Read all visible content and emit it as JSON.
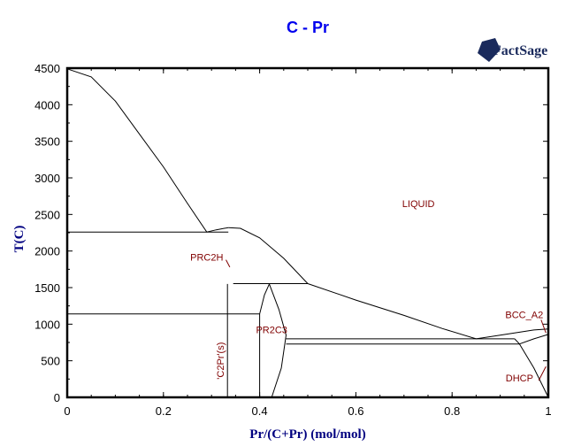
{
  "chart_data": {
    "type": "line",
    "title": "C - Pr",
    "xlabel": "Pr/(C+Pr) (mol/mol)",
    "ylabel": "T(C)",
    "xlim": [
      0,
      1
    ],
    "ylim": [
      0,
      4500
    ],
    "xticks": [
      "0",
      "0.2",
      "0.4",
      "0.6",
      "0.8",
      "1"
    ],
    "yticks": [
      "0",
      "500",
      "1000",
      "1500",
      "2000",
      "2500",
      "3000",
      "3500",
      "4000",
      "4500"
    ],
    "grid": false,
    "phase_labels": [
      {
        "text": "LIQUID",
        "x": 0.73,
        "y": 2600
      },
      {
        "text": "PRC2H",
        "x": 0.29,
        "y": 1870
      },
      {
        "text": "PR2C3",
        "x": 0.425,
        "y": 880
      },
      {
        "text": "'C2Pr'(s)",
        "x": 0.325,
        "y": 500,
        "rotated": true
      },
      {
        "text": "BCC_A2",
        "x": 0.95,
        "y": 1080
      },
      {
        "text": "DHCP",
        "x": 0.94,
        "y": 220
      }
    ],
    "lines": [
      {
        "name": "liquidus-C-rich",
        "points": [
          [
            0,
            4490
          ],
          [
            0.05,
            4380
          ],
          [
            0.1,
            4050
          ],
          [
            0.15,
            3600
          ],
          [
            0.2,
            3150
          ],
          [
            0.25,
            2650
          ],
          [
            0.29,
            2260
          ],
          [
            0.31,
            2290
          ],
          [
            0.335,
            2320
          ]
        ]
      },
      {
        "name": "liquidus-PrC2-dome",
        "points": [
          [
            0.335,
            2320
          ],
          [
            0.36,
            2310
          ],
          [
            0.4,
            2180
          ],
          [
            0.45,
            1900
          ],
          [
            0.5,
            1555
          ]
        ]
      },
      {
        "name": "liquidus-Pr-rich",
        "points": [
          [
            0.5,
            1555
          ],
          [
            0.6,
            1330
          ],
          [
            0.7,
            1120
          ],
          [
            0.78,
            940
          ],
          [
            0.85,
            800
          ],
          [
            0.9,
            850
          ],
          [
            0.97,
            920
          ],
          [
            1.0,
            935
          ]
        ]
      },
      {
        "name": "eutectic-C-PrC2H",
        "points": [
          [
            0,
            2260
          ],
          [
            0.335,
            2260
          ]
        ]
      },
      {
        "name": "peritectic-PR2C3",
        "points": [
          [
            0.345,
            1555
          ],
          [
            0.5,
            1555
          ]
        ]
      },
      {
        "name": "eutectoid-C-C2Pr",
        "points": [
          [
            0,
            1140
          ],
          [
            0.4,
            1140
          ]
        ]
      },
      {
        "name": "C2Pr-line",
        "points": [
          [
            0.333,
            0
          ],
          [
            0.333,
            1550
          ]
        ]
      },
      {
        "name": "PR2C3-left",
        "points": [
          [
            0.4,
            0
          ],
          [
            0.4,
            1140
          ],
          [
            0.41,
            1400
          ],
          [
            0.42,
            1550
          ]
        ]
      },
      {
        "name": "PR2C3-right",
        "points": [
          [
            0.42,
            1550
          ],
          [
            0.44,
            1200
          ],
          [
            0.455,
            850
          ],
          [
            0.445,
            400
          ],
          [
            0.425,
            0
          ]
        ]
      },
      {
        "name": "eutectic-PR2C3-BCC",
        "points": [
          [
            0.455,
            800
          ],
          [
            0.93,
            800
          ]
        ]
      },
      {
        "name": "eutectoid-PR2C3-DHCP",
        "points": [
          [
            0.455,
            730
          ],
          [
            0.94,
            730
          ]
        ]
      },
      {
        "name": "BCC-DHCP-boundary",
        "points": [
          [
            0.93,
            800
          ],
          [
            0.94,
            730
          ],
          [
            0.97,
            800
          ],
          [
            1.0,
            860
          ]
        ]
      },
      {
        "name": "DHCP-solvus",
        "points": [
          [
            0.94,
            730
          ],
          [
            0.97,
            400
          ],
          [
            1.0,
            0
          ]
        ]
      }
    ]
  },
  "logo": {
    "text": "FactSage"
  }
}
